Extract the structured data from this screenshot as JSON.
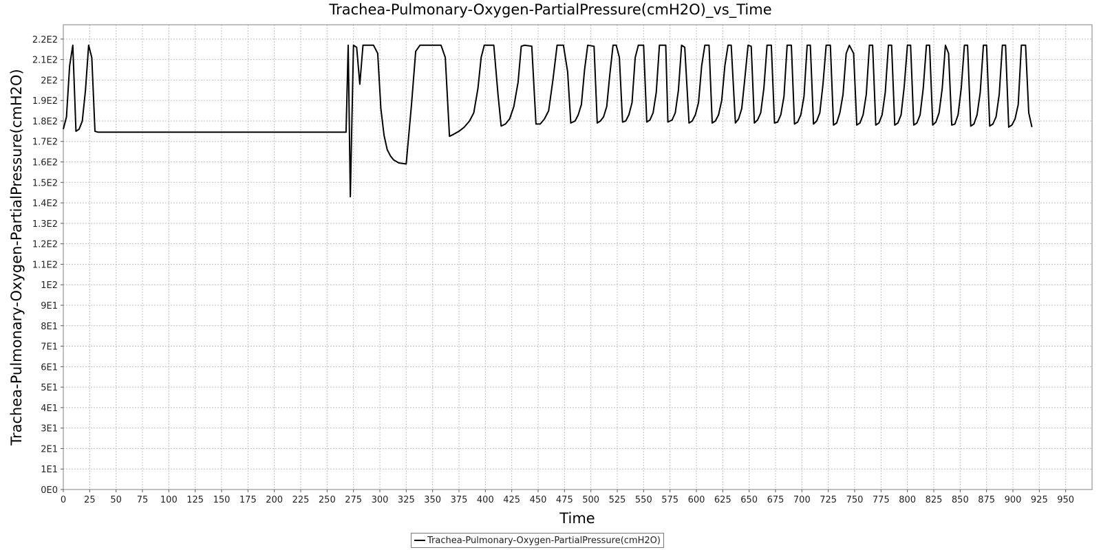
{
  "chart_data": {
    "type": "line",
    "title": "Trachea-Pulmonary-Oxygen-PartialPressure(cmH2O)_vs_Time",
    "xlabel": "Time",
    "ylabel": "Trachea-Pulmonary-Oxygen-PartialPressure(cmH2O)",
    "xlim": [
      0,
      975
    ],
    "ylim": [
      0,
      227
    ],
    "xticks": [
      "0",
      "25",
      "50",
      "75",
      "100",
      "125",
      "150",
      "175",
      "200",
      "225",
      "250",
      "275",
      "300",
      "325",
      "350",
      "375",
      "400",
      "425",
      "450",
      "475",
      "500",
      "525",
      "550",
      "575",
      "600",
      "625",
      "650",
      "675",
      "700",
      "725",
      "750",
      "775",
      "800",
      "825",
      "850",
      "875",
      "900",
      "925",
      "950"
    ],
    "yticks": [
      "0E0",
      "1E1",
      "2E1",
      "3E1",
      "4E1",
      "5E1",
      "6E1",
      "7E1",
      "8E1",
      "9E1",
      "1E2",
      "1.1E2",
      "1.2E2",
      "1.3E2",
      "1.4E2",
      "1.5E2",
      "1.6E2",
      "1.7E2",
      "1.8E2",
      "1.9E2",
      "2E2",
      "2.1E2",
      "2.2E2"
    ],
    "grid": true,
    "legend_position": "bottom-center",
    "series": [
      {
        "name": "Trachea-Pulmonary-Oxygen-PartialPressure(cmH2O)",
        "color": "#000000",
        "points": [
          [
            0,
            176
          ],
          [
            3,
            182
          ],
          [
            6,
            207
          ],
          [
            9,
            217
          ],
          [
            12,
            175
          ],
          [
            15,
            176
          ],
          [
            18,
            180
          ],
          [
            21,
            195
          ],
          [
            24,
            217
          ],
          [
            27,
            211
          ],
          [
            30,
            175
          ],
          [
            33,
            174.5
          ],
          [
            36,
            174.5
          ],
          [
            100,
            174.5
          ],
          [
            200,
            174.5
          ],
          [
            268,
            174.5
          ],
          [
            270,
            217
          ],
          [
            272,
            143
          ],
          [
            275,
            217
          ],
          [
            278,
            216
          ],
          [
            281,
            198
          ],
          [
            284,
            217
          ],
          [
            294,
            217
          ],
          [
            298,
            213
          ],
          [
            301,
            186
          ],
          [
            304,
            173
          ],
          [
            307,
            166
          ],
          [
            310,
            163
          ],
          [
            313,
            161
          ],
          [
            318,
            159.5
          ],
          [
            325,
            159
          ],
          [
            330,
            188
          ],
          [
            334,
            214
          ],
          [
            338,
            217
          ],
          [
            358,
            217
          ],
          [
            362,
            211
          ],
          [
            366,
            172.5
          ],
          [
            370,
            173.5
          ],
          [
            375,
            175
          ],
          [
            380,
            177
          ],
          [
            385,
            180
          ],
          [
            389,
            184
          ],
          [
            393,
            196
          ],
          [
            396,
            211
          ],
          [
            399,
            217
          ],
          [
            408,
            217
          ],
          [
            412,
            193
          ],
          [
            415,
            177.5
          ],
          [
            419,
            178.5
          ],
          [
            423,
            181
          ],
          [
            427,
            187
          ],
          [
            431,
            199
          ],
          [
            434,
            216.5
          ],
          [
            437,
            217
          ],
          [
            444,
            216.5
          ],
          [
            448,
            178.5
          ],
          [
            452,
            178.5
          ],
          [
            456,
            181
          ],
          [
            460,
            185
          ],
          [
            464,
            200
          ],
          [
            468,
            217
          ],
          [
            474,
            217
          ],
          [
            478,
            204
          ],
          [
            481,
            179
          ],
          [
            485,
            180
          ],
          [
            488,
            183
          ],
          [
            491,
            188
          ],
          [
            494,
            205
          ],
          [
            497,
            217
          ],
          [
            503,
            216.5
          ],
          [
            506,
            179
          ],
          [
            509,
            180
          ],
          [
            512,
            182
          ],
          [
            515,
            187
          ],
          [
            518,
            203
          ],
          [
            521,
            217
          ],
          [
            524,
            217
          ],
          [
            527,
            211
          ],
          [
            530,
            179.5
          ],
          [
            533,
            180
          ],
          [
            536,
            183
          ],
          [
            539,
            189
          ],
          [
            542,
            211
          ],
          [
            545,
            217
          ],
          [
            550,
            217
          ],
          [
            553,
            179.5
          ],
          [
            556,
            180.5
          ],
          [
            559,
            184
          ],
          [
            562,
            194
          ],
          [
            565,
            217
          ],
          [
            571,
            217
          ],
          [
            573,
            179.5
          ],
          [
            577,
            180.5
          ],
          [
            580,
            184
          ],
          [
            583,
            195
          ],
          [
            586,
            217
          ],
          [
            589,
            216
          ],
          [
            593,
            179
          ],
          [
            596,
            180
          ],
          [
            599,
            183
          ],
          [
            602,
            189
          ],
          [
            605,
            207
          ],
          [
            608,
            217
          ],
          [
            612,
            217
          ],
          [
            615,
            179
          ],
          [
            618,
            180
          ],
          [
            621,
            183
          ],
          [
            624,
            190
          ],
          [
            627,
            207
          ],
          [
            630,
            217
          ],
          [
            633,
            217
          ],
          [
            637,
            179
          ],
          [
            640,
            181
          ],
          [
            643,
            186
          ],
          [
            646,
            201
          ],
          [
            649,
            217
          ],
          [
            652,
            216.5
          ],
          [
            655,
            179
          ],
          [
            658,
            180.5
          ],
          [
            661,
            184
          ],
          [
            664,
            196
          ],
          [
            667,
            217
          ],
          [
            671,
            217
          ],
          [
            674,
            179
          ],
          [
            677,
            179.5
          ],
          [
            680,
            183
          ],
          [
            683,
            192
          ],
          [
            686,
            217
          ],
          [
            690,
            217
          ],
          [
            693,
            178.5
          ],
          [
            696,
            179.5
          ],
          [
            699,
            183
          ],
          [
            702,
            192
          ],
          [
            705,
            217
          ],
          [
            708,
            217
          ],
          [
            711,
            178.5
          ],
          [
            714,
            180
          ],
          [
            717,
            184
          ],
          [
            720,
            198
          ],
          [
            723,
            217
          ],
          [
            727,
            217
          ],
          [
            730,
            178
          ],
          [
            733,
            179
          ],
          [
            736,
            184
          ],
          [
            739,
            193
          ],
          [
            742,
            213
          ],
          [
            745,
            217
          ],
          [
            749,
            213
          ],
          [
            752,
            178
          ],
          [
            755,
            179
          ],
          [
            758,
            183
          ],
          [
            761,
            193
          ],
          [
            764,
            217
          ],
          [
            767,
            217
          ],
          [
            770,
            178
          ],
          [
            773,
            179
          ],
          [
            776,
            183
          ],
          [
            779,
            194
          ],
          [
            782,
            217
          ],
          [
            785,
            217
          ],
          [
            788,
            178
          ],
          [
            791,
            179
          ],
          [
            794,
            183
          ],
          [
            797,
            197
          ],
          [
            800,
            217
          ],
          [
            803,
            217
          ],
          [
            806,
            178
          ],
          [
            809,
            179
          ],
          [
            812,
            183
          ],
          [
            815,
            196
          ],
          [
            818,
            217
          ],
          [
            821,
            217
          ],
          [
            824,
            178
          ],
          [
            827,
            179.5
          ],
          [
            830,
            184
          ],
          [
            833,
            196
          ],
          [
            836,
            217
          ],
          [
            839,
            213
          ],
          [
            842,
            178
          ],
          [
            845,
            178.5
          ],
          [
            848,
            183
          ],
          [
            851,
            196
          ],
          [
            854,
            217
          ],
          [
            857,
            217
          ],
          [
            860,
            177.5
          ],
          [
            863,
            178.5
          ],
          [
            866,
            183
          ],
          [
            869,
            194
          ],
          [
            872,
            217
          ],
          [
            875,
            217
          ],
          [
            878,
            177.5
          ],
          [
            881,
            178.5
          ],
          [
            884,
            182
          ],
          [
            887,
            193
          ],
          [
            890,
            217
          ],
          [
            893,
            217
          ],
          [
            896,
            177
          ],
          [
            899,
            178
          ],
          [
            902,
            181
          ],
          [
            905,
            188
          ],
          [
            908,
            217
          ],
          [
            912,
            217
          ],
          [
            915,
            184
          ],
          [
            918,
            177
          ]
        ]
      }
    ]
  }
}
